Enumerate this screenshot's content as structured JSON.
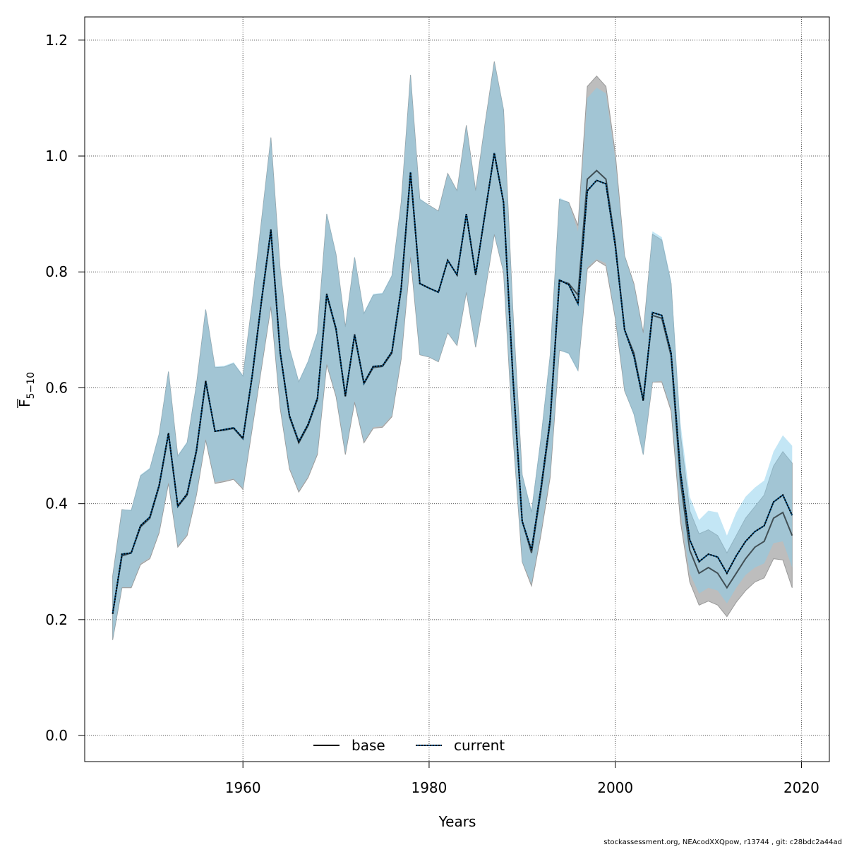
{
  "chart_data": {
    "type": "line",
    "title": "",
    "xlabel": "Years",
    "ylabel": "F",
    "ylabel_subscript": "5−10",
    "xlim": [
      1943,
      2023
    ],
    "ylim": [
      -0.045,
      1.24
    ],
    "xticks": [
      1960,
      1980,
      2000,
      2020
    ],
    "yticks": [
      0.0,
      0.2,
      0.4,
      0.6,
      0.8,
      1.0,
      1.2
    ],
    "xtick_labels": [
      "1960",
      "1980",
      "2000",
      "2020"
    ],
    "ytick_labels": [
      "0.0",
      "0.2",
      "0.4",
      "0.6",
      "0.8",
      "1.0",
      "1.2"
    ],
    "grid": true,
    "legend_placement": "bottom-center",
    "colors": {
      "base_line": "#000000",
      "base_band": "#bdbdbd",
      "current_line": "#004d80",
      "current_band": "#87ceeb",
      "current_band_opacity": 0.5
    },
    "x": [
      1946,
      1947,
      1948,
      1949,
      1950,
      1951,
      1952,
      1953,
      1954,
      1955,
      1956,
      1957,
      1958,
      1959,
      1960,
      1961,
      1962,
      1963,
      1964,
      1965,
      1966,
      1967,
      1968,
      1969,
      1970,
      1971,
      1972,
      1973,
      1974,
      1975,
      1976,
      1977,
      1978,
      1979,
      1980,
      1981,
      1982,
      1983,
      1984,
      1985,
      1986,
      1987,
      1988,
      1989,
      1990,
      1991,
      1992,
      1993,
      1994,
      1995,
      1996,
      1997,
      1998,
      1999,
      2000,
      2001,
      2002,
      2003,
      2004,
      2005,
      2006,
      2007,
      2008,
      2009,
      2010,
      2011,
      2012,
      2013,
      2014,
      2015,
      2016,
      2017,
      2018,
      2019
    ],
    "series": [
      {
        "name": "base",
        "style": "solid",
        "values": [
          0.21,
          0.31,
          0.315,
          0.36,
          0.375,
          0.43,
          0.52,
          0.395,
          0.415,
          0.49,
          0.61,
          0.525,
          0.527,
          0.53,
          0.512,
          0.62,
          0.75,
          0.87,
          0.66,
          0.55,
          0.505,
          0.535,
          0.58,
          0.76,
          0.7,
          0.585,
          0.69,
          0.607,
          0.635,
          0.637,
          0.66,
          0.77,
          0.97,
          0.78,
          0.772,
          0.765,
          0.82,
          0.795,
          0.9,
          0.795,
          0.9,
          1.005,
          0.92,
          0.62,
          0.37,
          0.315,
          0.42,
          0.54,
          0.785,
          0.78,
          0.76,
          0.96,
          0.975,
          0.96,
          0.85,
          0.7,
          0.66,
          0.58,
          0.725,
          0.72,
          0.655,
          0.44,
          0.32,
          0.28,
          0.29,
          0.28,
          0.255,
          0.28,
          0.305,
          0.325,
          0.335,
          0.375,
          0.385,
          0.345
        ],
        "lower": [
          0.165,
          0.255,
          0.255,
          0.295,
          0.305,
          0.35,
          0.435,
          0.325,
          0.345,
          0.415,
          0.51,
          0.435,
          0.438,
          0.442,
          0.425,
          0.53,
          0.635,
          0.74,
          0.565,
          0.46,
          0.42,
          0.445,
          0.485,
          0.64,
          0.585,
          0.485,
          0.575,
          0.505,
          0.53,
          0.532,
          0.55,
          0.65,
          0.825,
          0.657,
          0.653,
          0.645,
          0.695,
          0.673,
          0.765,
          0.67,
          0.765,
          0.865,
          0.8,
          0.52,
          0.3,
          0.258,
          0.345,
          0.445,
          0.665,
          0.66,
          0.63,
          0.805,
          0.82,
          0.81,
          0.72,
          0.595,
          0.555,
          0.485,
          0.61,
          0.61,
          0.56,
          0.37,
          0.265,
          0.225,
          0.232,
          0.225,
          0.205,
          0.23,
          0.25,
          0.265,
          0.272,
          0.305,
          0.303,
          0.255
        ],
        "upper": [
          0.275,
          0.39,
          0.388,
          0.448,
          0.46,
          0.52,
          0.628,
          0.482,
          0.505,
          0.605,
          0.735,
          0.635,
          0.636,
          0.642,
          0.62,
          0.748,
          0.89,
          1.032,
          0.805,
          0.668,
          0.61,
          0.645,
          0.695,
          0.9,
          0.83,
          0.705,
          0.825,
          0.728,
          0.76,
          0.762,
          0.793,
          0.92,
          1.14,
          0.925,
          0.915,
          0.905,
          0.97,
          0.94,
          1.053,
          0.94,
          1.055,
          1.163,
          1.08,
          0.735,
          0.45,
          0.385,
          0.51,
          0.655,
          0.925,
          0.92,
          0.88,
          1.12,
          1.138,
          1.12,
          1.005,
          0.828,
          0.78,
          0.695,
          0.865,
          0.855,
          0.78,
          0.52,
          0.388,
          0.348,
          0.355,
          0.345,
          0.315,
          0.345,
          0.375,
          0.395,
          0.415,
          0.465,
          0.49,
          0.47
        ]
      },
      {
        "name": "current",
        "style": "dotted",
        "values": [
          0.21,
          0.313,
          0.315,
          0.362,
          0.377,
          0.432,
          0.522,
          0.396,
          0.417,
          0.492,
          0.612,
          0.525,
          0.528,
          0.531,
          0.513,
          0.622,
          0.752,
          0.873,
          0.662,
          0.552,
          0.507,
          0.537,
          0.582,
          0.762,
          0.702,
          0.586,
          0.692,
          0.608,
          0.637,
          0.638,
          0.662,
          0.772,
          0.972,
          0.78,
          0.772,
          0.765,
          0.82,
          0.795,
          0.9,
          0.795,
          0.9,
          1.005,
          0.92,
          0.62,
          0.37,
          0.32,
          0.425,
          0.545,
          0.786,
          0.778,
          0.745,
          0.94,
          0.958,
          0.952,
          0.845,
          0.7,
          0.655,
          0.578,
          0.73,
          0.725,
          0.66,
          0.455,
          0.338,
          0.3,
          0.313,
          0.308,
          0.28,
          0.31,
          0.335,
          0.352,
          0.362,
          0.403,
          0.415,
          0.38
        ],
        "lower": [
          0.165,
          0.256,
          0.256,
          0.297,
          0.307,
          0.352,
          0.437,
          0.327,
          0.347,
          0.417,
          0.512,
          0.437,
          0.44,
          0.443,
          0.427,
          0.532,
          0.637,
          0.742,
          0.567,
          0.462,
          0.422,
          0.447,
          0.487,
          0.642,
          0.587,
          0.487,
          0.577,
          0.507,
          0.532,
          0.534,
          0.552,
          0.652,
          0.827,
          0.657,
          0.653,
          0.645,
          0.695,
          0.673,
          0.765,
          0.67,
          0.765,
          0.865,
          0.8,
          0.52,
          0.3,
          0.262,
          0.35,
          0.45,
          0.665,
          0.658,
          0.628,
          0.808,
          0.822,
          0.815,
          0.722,
          0.595,
          0.553,
          0.483,
          0.61,
          0.612,
          0.565,
          0.385,
          0.28,
          0.245,
          0.255,
          0.25,
          0.228,
          0.255,
          0.277,
          0.29,
          0.297,
          0.332,
          0.335,
          0.29
        ],
        "upper": [
          0.275,
          0.39,
          0.39,
          0.45,
          0.462,
          0.522,
          0.63,
          0.484,
          0.507,
          0.607,
          0.737,
          0.637,
          0.638,
          0.644,
          0.622,
          0.75,
          0.892,
          1.034,
          0.807,
          0.67,
          0.612,
          0.647,
          0.697,
          0.902,
          0.832,
          0.707,
          0.827,
          0.73,
          0.762,
          0.764,
          0.795,
          0.922,
          1.142,
          0.927,
          0.915,
          0.905,
          0.97,
          0.94,
          1.053,
          0.94,
          1.055,
          1.163,
          1.082,
          0.738,
          0.452,
          0.39,
          0.515,
          0.66,
          0.928,
          0.92,
          0.87,
          1.1,
          1.118,
          1.108,
          0.995,
          0.828,
          0.778,
          0.693,
          0.87,
          0.86,
          0.785,
          0.54,
          0.412,
          0.372,
          0.388,
          0.385,
          0.345,
          0.385,
          0.412,
          0.428,
          0.44,
          0.49,
          0.518,
          0.5
        ]
      }
    ]
  },
  "footer": {
    "text": "stockassessment.org, NEAcodXXQpow, r13744 , git: c28bdc2a44ad"
  }
}
